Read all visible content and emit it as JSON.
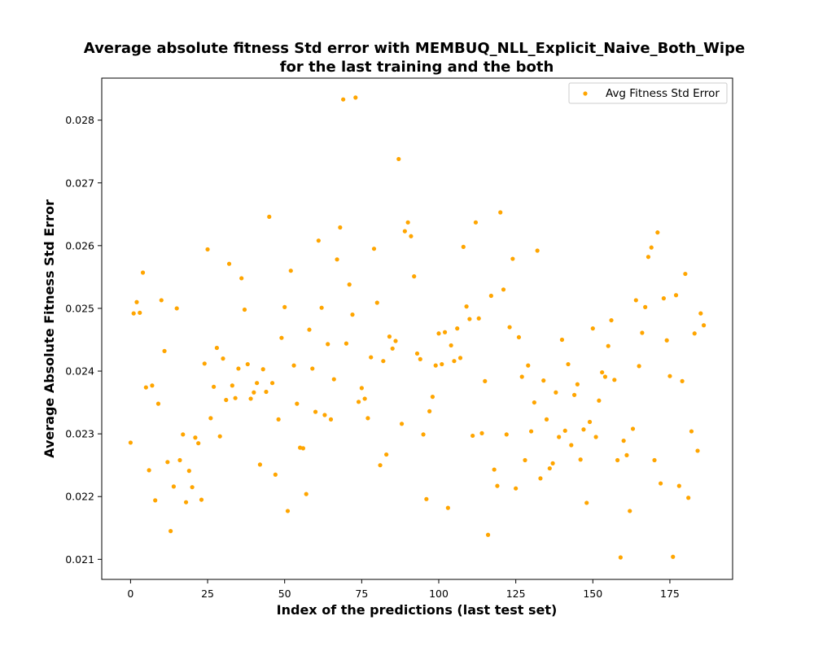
{
  "chart_data": {
    "type": "scatter",
    "title_line1": "Average absolute fitness Std error with MEMBUQ_NLL_Explicit_Naive_Both_Wipe",
    "title_line2": "for the last training and the both",
    "xlabel": "Index of the predictions (last test set)",
    "ylabel": "Average Absolute Fitness Std Error",
    "xlim": [
      -9.35,
      195.35
    ],
    "ylim": [
      0.02068,
      0.02867
    ],
    "x_ticks": [
      0,
      25,
      50,
      75,
      100,
      125,
      150,
      175
    ],
    "y_ticks": [
      0.021,
      0.022,
      0.023,
      0.024,
      0.025,
      0.026,
      0.027,
      0.028
    ],
    "x_tick_labels": [
      "0",
      "25",
      "50",
      "75",
      "100",
      "125",
      "150",
      "175"
    ],
    "y_tick_labels": [
      "0.021",
      "0.022",
      "0.023",
      "0.024",
      "0.025",
      "0.026",
      "0.027",
      "0.028"
    ],
    "grid": false,
    "legend_position": "top-right",
    "series": [
      {
        "name": "Avg Fitness Std Error",
        "color": "#ffa500",
        "y": [
          0.02286,
          0.02492,
          0.0251,
          0.02493,
          0.02557,
          0.02374,
          0.02242,
          0.02377,
          0.02194,
          0.02348,
          0.02513,
          0.02432,
          0.02255,
          0.02145,
          0.02216,
          0.025,
          0.02258,
          0.02299,
          0.02191,
          0.02241,
          0.02215,
          0.02294,
          0.02285,
          0.02195,
          0.02412,
          0.02594,
          0.02325,
          0.02375,
          0.02437,
          0.02296,
          0.0242,
          0.02354,
          0.02571,
          0.02377,
          0.02357,
          0.02404,
          0.02548,
          0.02498,
          0.02411,
          0.02356,
          0.02366,
          0.02381,
          0.02251,
          0.02403,
          0.02367,
          0.02646,
          0.02381,
          0.02235,
          0.02323,
          0.02453,
          0.02502,
          0.02177,
          0.0256,
          0.02409,
          0.02348,
          0.02278,
          0.02277,
          0.02204,
          0.02466,
          0.02404,
          0.02335,
          0.02608,
          0.02501,
          0.0233,
          0.02443,
          0.02323,
          0.02387,
          0.02578,
          0.02629,
          0.02833,
          0.02444,
          0.02538,
          0.0249,
          0.02836,
          0.02351,
          0.02373,
          0.02356,
          0.02325,
          0.02422,
          0.02595,
          0.02509,
          0.0225,
          0.02416,
          0.02267,
          0.02455,
          0.02436,
          0.02448,
          0.02738,
          0.02316,
          0.02623,
          0.02637,
          0.02615,
          0.02551,
          0.02428,
          0.02419,
          0.02299,
          0.02196,
          0.02336,
          0.02359,
          0.02409,
          0.0246,
          0.02411,
          0.02462,
          0.02182,
          0.02441,
          0.02416,
          0.02468,
          0.02421,
          0.02598,
          0.02503,
          0.02483,
          0.02297,
          0.02637,
          0.02484,
          0.02301,
          0.02384,
          0.02139,
          0.0252,
          0.02243,
          0.02217,
          0.02653,
          0.0253,
          0.02299,
          0.0247,
          0.02579,
          0.02213,
          0.02454,
          0.02391,
          0.02258,
          0.02409,
          0.02304,
          0.0235,
          0.02592,
          0.02229,
          0.02385,
          0.02323,
          0.02245,
          0.02253,
          0.02366,
          0.02295,
          0.0245,
          0.02305,
          0.02411,
          0.02282,
          0.02362,
          0.02379,
          0.02259,
          0.02307,
          0.0219,
          0.02319,
          0.02468,
          0.02295,
          0.02353,
          0.02398,
          0.02391,
          0.0244,
          0.02481,
          0.02386,
          0.02258,
          0.02103,
          0.02289,
          0.02266,
          0.02177,
          0.02308,
          0.02513,
          0.02408,
          0.02461,
          0.02502,
          0.02582,
          0.02597,
          0.02258,
          0.02621,
          0.02221,
          0.02516,
          0.02449,
          0.02392,
          0.02104,
          0.02521,
          0.02217,
          0.02384,
          0.02555,
          0.02198,
          0.02304,
          0.0246,
          0.02273,
          0.02492,
          0.02473
        ]
      }
    ]
  }
}
